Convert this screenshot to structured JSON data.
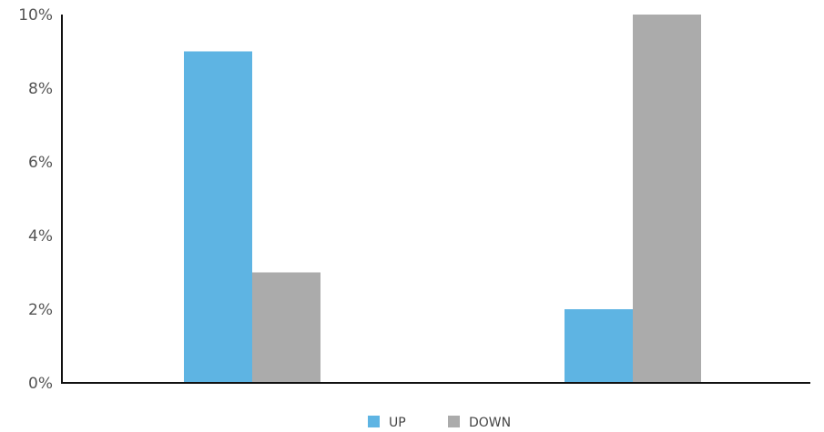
{
  "chart_data": {
    "type": "bar",
    "categories": [
      "",
      ""
    ],
    "series": [
      {
        "name": "UP",
        "color": "#5EB4E3",
        "values": [
          9,
          2
        ]
      },
      {
        "name": "DOWN",
        "color": "#ABABAB",
        "values": [
          3,
          10
        ]
      }
    ],
    "ylim": [
      0,
      10
    ],
    "yticks": [
      0,
      2,
      4,
      6,
      8,
      10
    ],
    "ytick_labels": [
      "0%",
      "2%",
      "4%",
      "6%",
      "8%",
      "10%"
    ],
    "grid": false,
    "legend": {
      "position": "bottom"
    },
    "title": "",
    "xlabel": "",
    "ylabel": ""
  }
}
